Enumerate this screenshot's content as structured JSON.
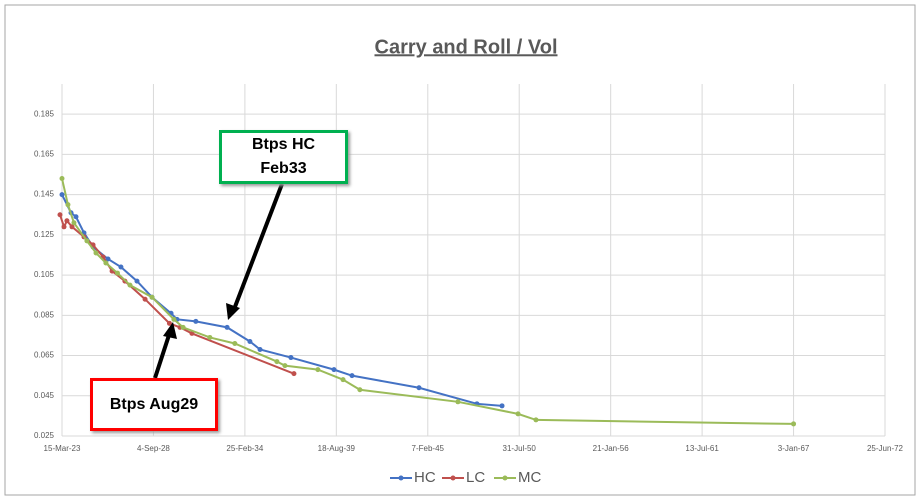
{
  "chart_data": {
    "type": "line",
    "title": "Carry and Roll / Vol",
    "xlim": [
      "2023-03-15",
      "2072-06-25"
    ],
    "xticks": [
      {
        "value": "2023-03-15",
        "label": "15-Mar-23"
      },
      {
        "value": "2028-09-04",
        "label": "4-Sep-28"
      },
      {
        "value": "2034-02-25",
        "label": "25-Feb-34"
      },
      {
        "value": "2039-08-18",
        "label": "18-Aug-39"
      },
      {
        "value": "2045-02-07",
        "label": "7-Feb-45"
      },
      {
        "value": "2050-07-31",
        "label": "31-Jul-50"
      },
      {
        "value": "2056-01-21",
        "label": "21-Jan-56"
      },
      {
        "value": "2061-07-13",
        "label": "13-Jul-61"
      },
      {
        "value": "2067-01-03",
        "label": "3-Jan-67"
      },
      {
        "value": "2072-06-25",
        "label": "25-Jun-72"
      }
    ],
    "ylim": [
      0.025,
      0.2
    ],
    "yticks": [
      0.025,
      0.045,
      0.065,
      0.085,
      0.105,
      0.125,
      0.145,
      0.165,
      0.185
    ],
    "grid": true,
    "legend": "bottom",
    "series": [
      {
        "name": "HC",
        "color": "#4472c4",
        "x": [
          "2023-03-15",
          "2023-09-28",
          "2024-01-15",
          "2024-07-08",
          "2025-01-22",
          "2025-12-15",
          "2026-09-24",
          "2027-09-10",
          "2028-08-04",
          "2029-09-24",
          "2030-02-01",
          "2031-03-20",
          "2033-02-01",
          "2034-06-15",
          "2035-01-22",
          "2036-11-28",
          "2039-06-28",
          "2040-07-26",
          "2044-07-30",
          "2048-01-18",
          "2049-07-20"
        ],
        "values": [
          0.145,
          0.136,
          0.134,
          0.126,
          0.119,
          0.113,
          0.109,
          0.102,
          0.094,
          0.086,
          0.083,
          0.082,
          0.079,
          0.072,
          0.068,
          0.064,
          0.058,
          0.055,
          0.049,
          0.041,
          0.04
        ]
      },
      {
        "name": "LC",
        "color": "#c0504d",
        "x": [
          "2023-01-30",
          "2023-04-28",
          "2023-07-01",
          "2023-10-20",
          "2024-07-08",
          "2025-01-22",
          "2025-08-30",
          "2026-03-15",
          "2026-12-20",
          "2028-03-05",
          "2029-08-20",
          "2030-04-08",
          "2030-12-25",
          "2037-02-02"
        ],
        "values": [
          0.135,
          0.129,
          0.132,
          0.129,
          0.124,
          0.12,
          0.114,
          0.107,
          0.102,
          0.093,
          0.081,
          0.079,
          0.076,
          0.056
        ]
      },
      {
        "name": "MC",
        "color": "#9bbb59",
        "x": [
          "2023-03-15",
          "2023-07-23",
          "2023-12-01",
          "2024-09-10",
          "2025-03-28",
          "2025-10-30",
          "2026-07-10",
          "2027-04-10",
          "2028-08-04",
          "2029-11-25",
          "2030-06-15",
          "2032-01-20",
          "2033-07-20",
          "2036-01-26",
          "2036-07-20",
          "2038-07-10",
          "2040-01-12",
          "2041-01-14",
          "2046-11-28",
          "2050-07-05",
          "2051-08-01",
          "2067-01-03"
        ],
        "values": [
          0.153,
          0.14,
          0.131,
          0.122,
          0.116,
          0.111,
          0.106,
          0.1,
          0.094,
          0.083,
          0.079,
          0.074,
          0.071,
          0.062,
          0.06,
          0.058,
          0.053,
          0.048,
          0.042,
          0.036,
          0.033,
          0.031
        ]
      }
    ],
    "annotations": [
      {
        "text": "Btps HC Feb33",
        "color": "#00b050"
      },
      {
        "text": "Btps Aug29",
        "color": "#ff0000"
      }
    ]
  }
}
